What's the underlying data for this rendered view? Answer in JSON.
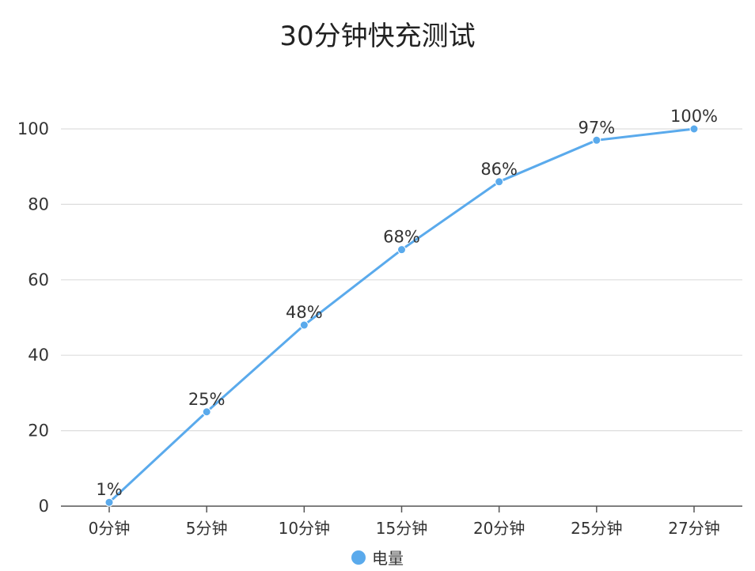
{
  "chart_data": {
    "type": "line",
    "title": "30分钟快充测试",
    "categories": [
      "0分钟",
      "5分钟",
      "10分钟",
      "15分钟",
      "20分钟",
      "25分钟",
      "27分钟"
    ],
    "series": [
      {
        "name": "电量",
        "values": [
          1,
          25,
          48,
          68,
          86,
          97,
          100
        ],
        "labels": [
          "1%",
          "25%",
          "48%",
          "68%",
          "86%",
          "97%",
          "100%"
        ]
      }
    ],
    "ylim": [
      0,
      100
    ],
    "yticks": [
      0,
      20,
      40,
      60,
      80,
      100
    ],
    "xlabel": "",
    "ylabel": "",
    "grid": true,
    "legend": "bottom-center",
    "colors": {
      "series": "#5aaaec",
      "grid": "#dddddd",
      "axis": "#555555",
      "text": "#333333"
    }
  }
}
